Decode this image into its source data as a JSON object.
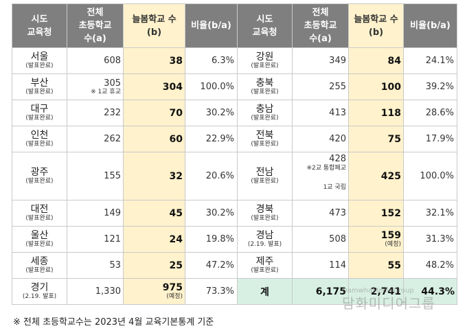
{
  "header": {
    "region": [
      "시도",
      "교육청"
    ],
    "total": [
      "전체",
      "초등학교",
      "수(a)"
    ],
    "neulbom": [
      "늘봄학교 수",
      "(b)"
    ],
    "ratio": "비율(b/a)"
  },
  "rows": [
    {
      "left": {
        "name": "서울",
        "status": "(발표완료)",
        "total": "608",
        "neulbom": "38",
        "ratio": "6.3%"
      },
      "right": {
        "name": "강원",
        "status": "(발표완료)",
        "total": "349",
        "neulbom": "84",
        "ratio": "24.1%"
      }
    },
    {
      "left": {
        "name": "부산",
        "status": "(발표완료)",
        "total": "305",
        "total_note": "※ 1교 휴교",
        "neulbom": "304",
        "ratio": "100.0%"
      },
      "right": {
        "name": "충북",
        "status": "(발표완료)",
        "total": "255",
        "neulbom": "100",
        "ratio": "39.2%"
      }
    },
    {
      "left": {
        "name": "대구",
        "status": "(발표완료)",
        "total": "232",
        "neulbom": "70",
        "ratio": "30.2%"
      },
      "right": {
        "name": "충남",
        "status": "(발표완료)",
        "total": "413",
        "neulbom": "118",
        "ratio": "28.6%"
      }
    },
    {
      "left": {
        "name": "인천",
        "status": "(발표완료)",
        "total": "262",
        "neulbom": "60",
        "ratio": "22.9%"
      },
      "right": {
        "name": "전북",
        "status": "(발표완료)",
        "total": "420",
        "neulbom": "75",
        "ratio": "17.9%"
      }
    },
    {
      "left": {
        "name": "광주",
        "status": "(발표완료)",
        "total": "155",
        "neulbom": "32",
        "ratio": "20.6%"
      },
      "right": {
        "name": "전남",
        "status": "(발표완료)",
        "total": "428",
        "total_note": "※2교 통합폐교",
        "total_note2": "1교 국립",
        "neulbom": "425",
        "ratio": "100.0%"
      }
    },
    {
      "left": {
        "name": "대전",
        "status": "(발표완료)",
        "total": "149",
        "neulbom": "45",
        "ratio": "30.2%"
      },
      "right": {
        "name": "경북",
        "status": "(발표완료)",
        "total": "473",
        "neulbom": "152",
        "ratio": "32.1%"
      }
    },
    {
      "left": {
        "name": "울산",
        "status": "(발표완료)",
        "total": "121",
        "neulbom": "24",
        "ratio": "19.8%"
      },
      "right": {
        "name": "경남",
        "status": "(2.19. 발표)",
        "total": "508",
        "neulbom": "159",
        "neulbom_note": "(예정)",
        "ratio": "31.3%"
      }
    },
    {
      "left": {
        "name": "세종",
        "status": "(발표완료)",
        "total": "53",
        "neulbom": "25",
        "ratio": "47.2%"
      },
      "right": {
        "name": "제주",
        "status": "(발표완료)",
        "total": "114",
        "neulbom": "55",
        "ratio": "48.2%"
      }
    },
    {
      "left": {
        "name": "경기",
        "status": "(2.19. 발표)",
        "total": "1,330",
        "neulbom": "975",
        "neulbom_note": "(예정)",
        "ratio": "73.3%"
      },
      "right": {
        "name": "계",
        "total": "6,175",
        "neulbom": "2,741",
        "ratio": "44.3%"
      }
    }
  ],
  "footnote": "※ 전체 초등학교수는 2023년 4월 교육기본통계 기준",
  "watermark": {
    "en": "DamwhaMediaGroup",
    "ko": "담화미디어그룹"
  },
  "colors": {
    "header": "#7f7f7f",
    "highlight": "#fff2cc",
    "total": "#d8f0e4",
    "border": "#c9c9c9"
  }
}
